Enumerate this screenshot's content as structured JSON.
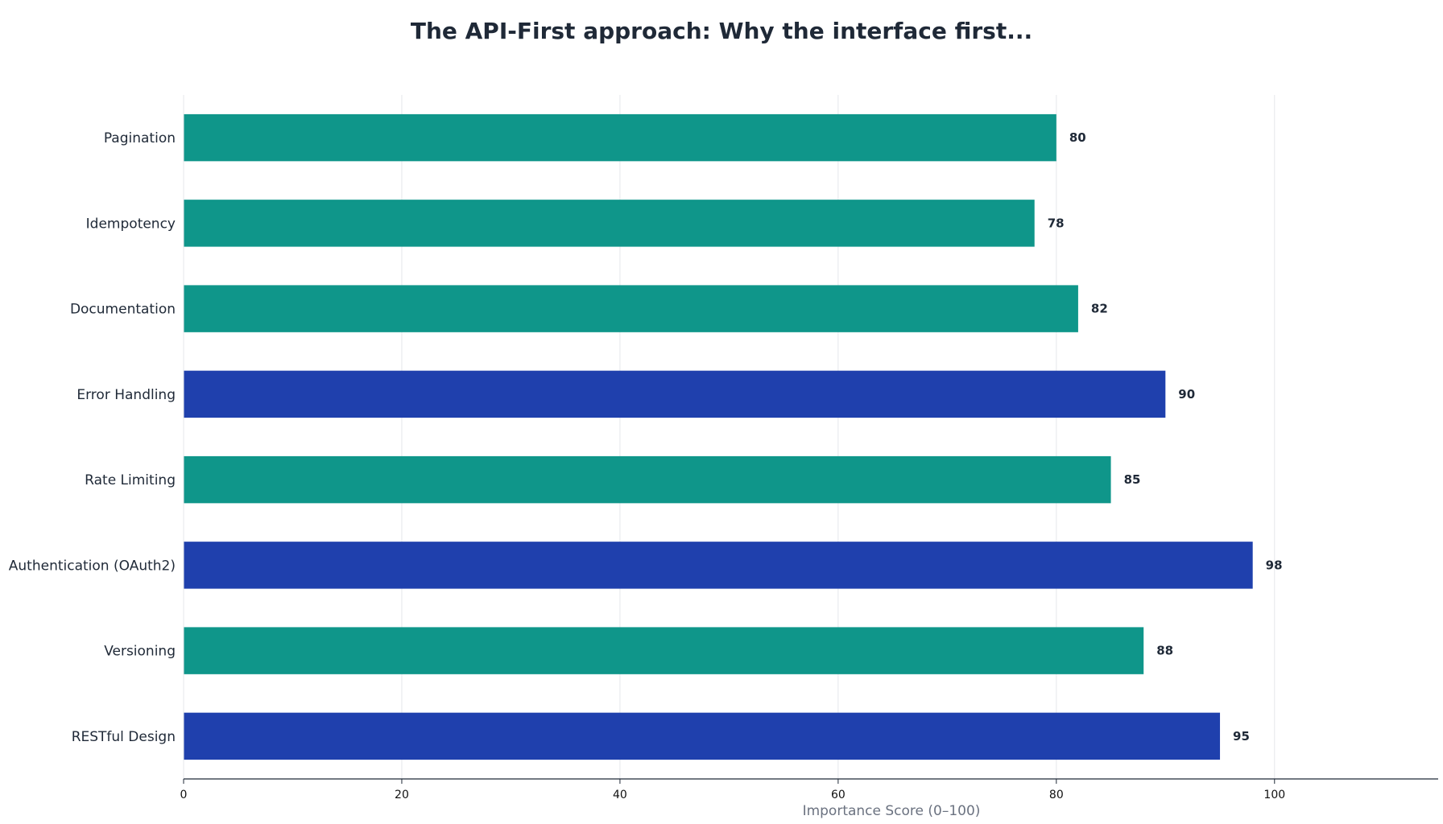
{
  "chart_data": {
    "type": "bar",
    "orientation": "horizontal",
    "title": "The API-First approach: Why the interface first...",
    "xlabel": "Importance Score (0–100)",
    "ylabel": "",
    "xlim": [
      0,
      115
    ],
    "xticks": [
      0,
      20,
      40,
      60,
      80,
      100
    ],
    "grid": "vertical",
    "categories": [
      "Pagination",
      "Idempotency",
      "Documentation",
      "Error Handling",
      "Rate Limiting",
      "Authentication (OAuth2)",
      "Versioning",
      "RESTful Design"
    ],
    "values": [
      80,
      78,
      82,
      90,
      85,
      98,
      88,
      95
    ],
    "bar_colors": [
      "#0f968a",
      "#0f968a",
      "#0f968a",
      "#1f40ad",
      "#0f968a",
      "#1f40ad",
      "#0f968a",
      "#1f40ad"
    ]
  },
  "colors": {
    "teal": "#0f968a",
    "blue": "#1f40ad",
    "grid": "#e5e7eb",
    "axis": "#1f2937"
  }
}
